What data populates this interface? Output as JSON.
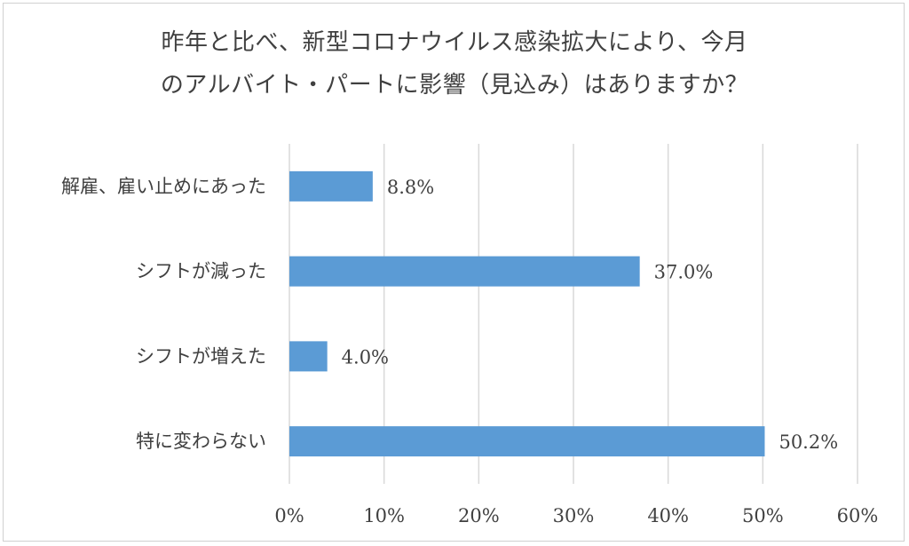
{
  "chart_data": {
    "type": "bar",
    "orientation": "horizontal",
    "title_lines": [
      "昨年と比べ、新型コロナウイルス感染拡大により、今月",
      "のアルバイト・パートに影響（見込み）はありますか？"
    ],
    "categories": [
      "解雇、雇い止めにあった",
      "シフトが減った",
      "シフトが増えた",
      "特に変わらない"
    ],
    "values": [
      8.8,
      37.0,
      4.0,
      50.2
    ],
    "value_labels": [
      "8.8%",
      "37.0%",
      "4.0%",
      "50.2%"
    ],
    "xlim": [
      0,
      60
    ],
    "x_ticks": [
      "0%",
      "10%",
      "20%",
      "30%",
      "40%",
      "50%",
      "60%"
    ],
    "grid": "vertical",
    "bar_color": "#5b9bd5",
    "grid_color": "#d9d9d9"
  }
}
